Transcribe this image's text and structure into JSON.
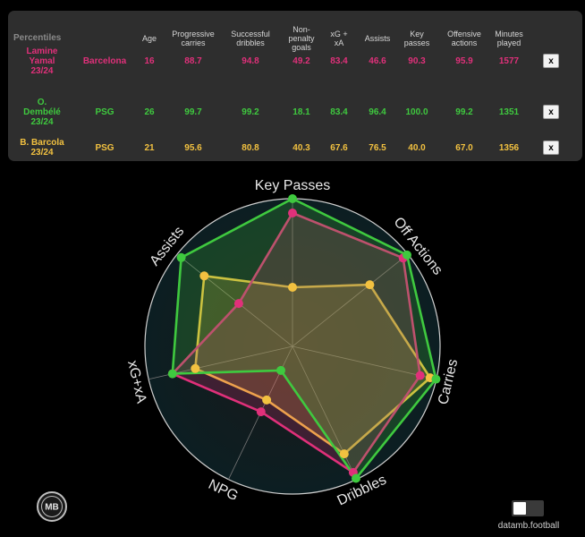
{
  "table": {
    "headers": [
      {
        "key": "percentiles",
        "label": "Percentiles"
      },
      {
        "key": "age",
        "label": "Age"
      },
      {
        "key": "progressive_carries",
        "label": "Progressive\ncarries"
      },
      {
        "key": "successful_dribbles",
        "label": "Successful\ndribbles"
      },
      {
        "key": "npg",
        "label": "Non-\npenalty\ngoals"
      },
      {
        "key": "xg_xa",
        "label": "xG +\nxA"
      },
      {
        "key": "assists",
        "label": "Assists"
      },
      {
        "key": "key_passes",
        "label": "Key\npasses"
      },
      {
        "key": "offensive_actions",
        "label": "Offensive\nactions"
      },
      {
        "key": "minutes_played",
        "label": "Minutes\nplayed"
      }
    ],
    "remove_label": "x",
    "rows": [
      {
        "player": "Lamine\nYamal\n23/24",
        "club": "Barcelona",
        "age": "16",
        "progressive_carries": "88.7",
        "successful_dribbles": "94.8",
        "npg": "49.2",
        "xg_xa": "83.4",
        "assists": "46.6",
        "key_passes": "90.3",
        "offensive_actions": "95.9",
        "minutes": "1577",
        "color": "#e0307a"
      },
      {
        "player": "O.\nDembélé\n23/24",
        "club": "PSG",
        "age": "26",
        "progressive_carries": "99.7",
        "successful_dribbles": "99.2",
        "npg": "18.1",
        "xg_xa": "83.4",
        "assists": "96.4",
        "key_passes": "100.0",
        "offensive_actions": "99.2",
        "minutes": "1351",
        "color": "#3fc93f"
      },
      {
        "player": "B. Barcola\n23/24",
        "club": "PSG",
        "age": "21",
        "progressive_carries": "95.6",
        "successful_dribbles": "80.8",
        "npg": "40.3",
        "xg_xa": "67.6",
        "assists": "76.5",
        "key_passes": "40.0",
        "offensive_actions": "67.0",
        "minutes": "1356",
        "color": "#f2c140"
      }
    ]
  },
  "chart_data": {
    "type": "radar",
    "axes": [
      "Key Passes",
      "Off Actions",
      "Carries",
      "Dribbles",
      "NPG",
      "xG+xA",
      "Assists"
    ],
    "range": [
      0,
      100
    ],
    "series": [
      {
        "name": "Lamine Yamal 23/24",
        "color": "#e0307a",
        "values": [
          90.3,
          95.9,
          88.7,
          94.8,
          49.2,
          83.4,
          46.6
        ]
      },
      {
        "name": "O. Dembélé 23/24",
        "color": "#3fc93f",
        "values": [
          100.0,
          99.2,
          99.7,
          99.2,
          18.1,
          83.4,
          96.4
        ]
      },
      {
        "name": "B. Barcola 23/24",
        "color": "#f2c140",
        "values": [
          40.0,
          67.0,
          95.6,
          80.8,
          40.3,
          67.6,
          76.5
        ]
      }
    ]
  },
  "footer": {
    "logo_text": "MB",
    "credit": "datamb.football",
    "toggle_state": "light"
  }
}
